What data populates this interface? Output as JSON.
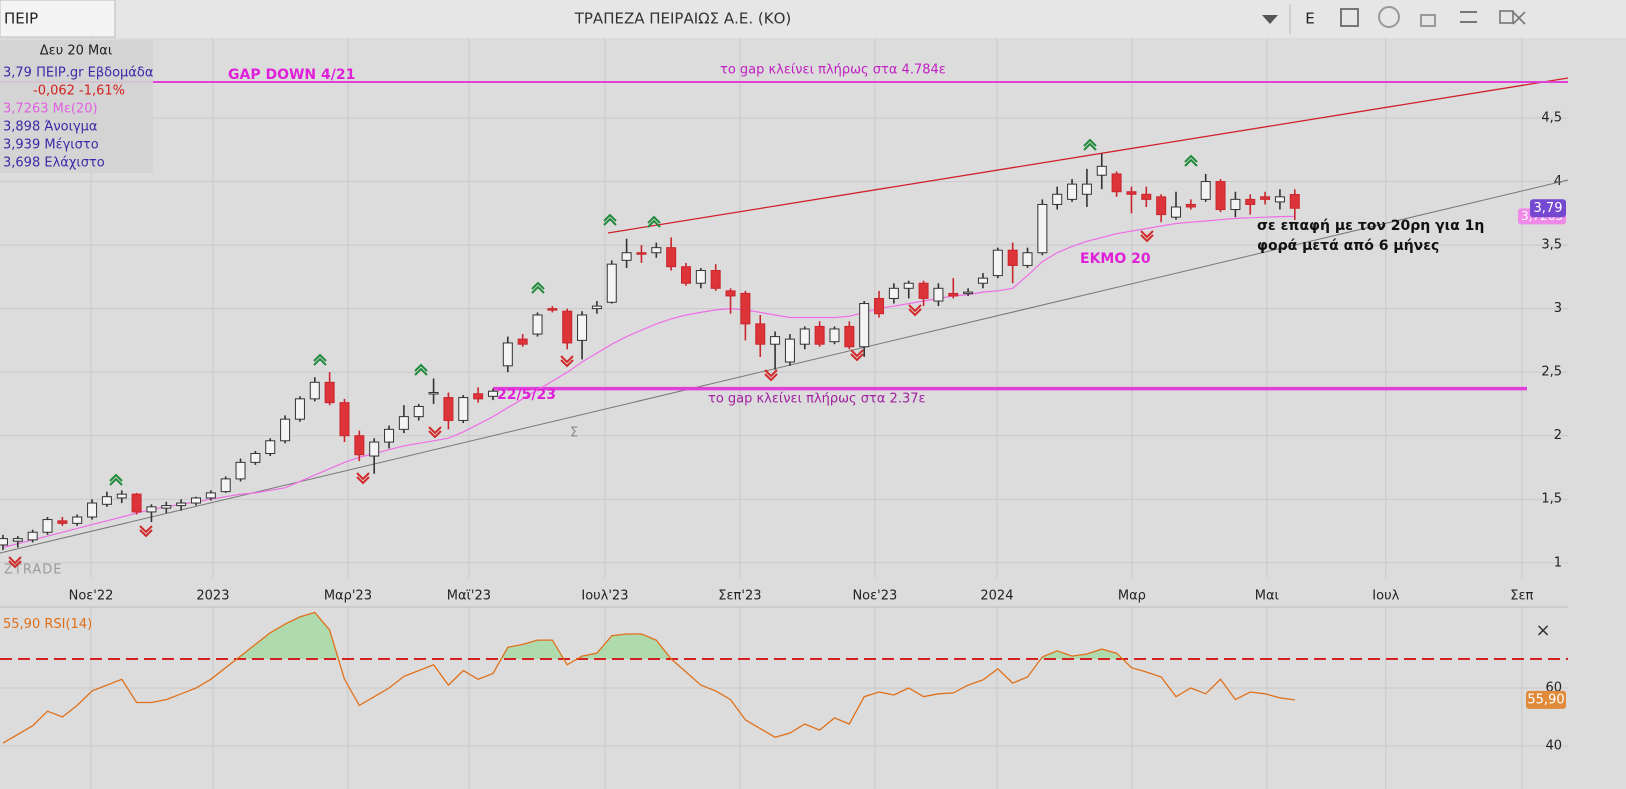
{
  "header": {
    "symbol": "ΠΕΙΡ",
    "title": "ΤΡΑΠΕΖΑ ΠΕΙΡΑΙΩΣ Α.Ε. (ΚΟ)",
    "mode": "Ε",
    "close": "×"
  },
  "info": {
    "date": "Δευ 20 Μαι",
    "lines": [
      "3,79 ΠΕΙΡ.gr Εβδομάδα",
      "-0,062 -1,61%",
      "3,7263 Με(20)",
      "3,898 Άνοιγμα",
      "3,939 Μέγιστο",
      "3,698 Ελάχιστο"
    ]
  },
  "chart_data": [
    {
      "type": "candlestick",
      "watermark": "ZTRADE",
      "open": [
        1.14,
        1.17,
        1.18,
        1.24,
        1.33,
        1.31,
        1.36,
        1.46,
        1.51,
        1.54,
        1.4,
        1.43,
        1.45,
        1.47,
        1.51,
        1.56,
        1.66,
        1.79,
        1.86,
        1.96,
        2.13,
        2.29,
        2.42,
        2.26,
        2.0,
        1.84,
        1.95,
        2.05,
        2.15,
        2.34,
        2.3,
        2.12,
        2.33,
        2.31,
        2.55,
        2.76,
        2.8,
        3.0,
        2.98,
        2.75,
        3.0,
        3.05,
        3.38,
        3.44,
        3.44,
        3.48,
        3.33,
        3.2,
        3.3,
        3.14,
        3.12,
        2.88,
        2.72,
        2.58,
        2.72,
        2.86,
        2.74,
        2.86,
        2.7,
        3.08,
        3.08,
        3.16,
        3.2,
        3.06,
        3.12,
        3.12,
        3.2,
        3.26,
        3.46,
        3.34,
        3.44,
        3.82,
        3.86,
        3.9,
        4.05,
        4.06,
        3.92,
        3.9,
        3.88,
        3.72,
        3.82,
        3.86,
        4.0,
        3.78,
        3.86,
        3.88,
        3.84,
        3.898
      ],
      "high": [
        1.22,
        1.21,
        1.26,
        1.36,
        1.36,
        1.38,
        1.5,
        1.56,
        1.57,
        1.55,
        1.46,
        1.48,
        1.5,
        1.52,
        1.57,
        1.68,
        1.82,
        1.88,
        1.98,
        2.16,
        2.31,
        2.46,
        2.5,
        2.29,
        2.04,
        1.98,
        2.08,
        2.24,
        2.25,
        2.45,
        2.34,
        2.32,
        2.38,
        2.37,
        2.78,
        2.8,
        2.97,
        3.02,
        3.0,
        2.98,
        3.06,
        3.38,
        3.55,
        3.5,
        3.52,
        3.56,
        3.36,
        3.32,
        3.35,
        3.16,
        3.14,
        2.95,
        2.82,
        2.8,
        2.86,
        2.9,
        2.86,
        2.9,
        3.06,
        3.14,
        3.2,
        3.22,
        3.22,
        3.2,
        3.24,
        3.16,
        3.28,
        3.48,
        3.52,
        3.48,
        3.86,
        3.96,
        4.02,
        4.1,
        4.22,
        4.08,
        3.96,
        3.96,
        3.9,
        3.92,
        3.86,
        4.06,
        4.02,
        3.92,
        3.9,
        3.92,
        3.94,
        3.939
      ],
      "low": [
        1.1,
        1.12,
        1.16,
        1.22,
        1.29,
        1.29,
        1.34,
        1.44,
        1.47,
        1.38,
        1.32,
        1.39,
        1.41,
        1.45,
        1.49,
        1.55,
        1.64,
        1.77,
        1.84,
        1.94,
        2.11,
        2.27,
        2.24,
        1.95,
        1.8,
        1.7,
        1.9,
        2.02,
        2.12,
        2.25,
        2.05,
        2.1,
        2.26,
        2.28,
        2.5,
        2.7,
        2.78,
        2.97,
        2.68,
        2.6,
        2.96,
        3.04,
        3.32,
        3.36,
        3.4,
        3.3,
        3.18,
        3.16,
        3.14,
        2.96,
        2.75,
        2.62,
        2.52,
        2.55,
        2.68,
        2.7,
        2.72,
        2.68,
        2.62,
        2.93,
        3.04,
        3.08,
        3.02,
        3.02,
        3.08,
        3.1,
        3.16,
        3.24,
        3.2,
        3.32,
        3.42,
        3.78,
        3.84,
        3.8,
        3.94,
        3.88,
        3.75,
        3.8,
        3.68,
        3.7,
        3.78,
        3.84,
        3.76,
        3.72,
        3.74,
        3.82,
        3.78,
        3.698
      ],
      "close": [
        1.19,
        1.19,
        1.24,
        1.34,
        1.31,
        1.36,
        1.47,
        1.52,
        1.54,
        1.4,
        1.44,
        1.45,
        1.47,
        1.51,
        1.55,
        1.66,
        1.79,
        1.86,
        1.96,
        2.13,
        2.29,
        2.42,
        2.26,
        2.0,
        1.85,
        1.95,
        2.05,
        2.15,
        2.23,
        2.34,
        2.12,
        2.3,
        2.29,
        2.35,
        2.73,
        2.72,
        2.95,
        2.99,
        2.73,
        2.95,
        3.02,
        3.35,
        3.44,
        3.43,
        3.48,
        3.33,
        3.2,
        3.3,
        3.16,
        3.1,
        2.88,
        2.72,
        2.78,
        2.76,
        2.84,
        2.72,
        2.84,
        2.7,
        3.04,
        2.96,
        3.16,
        3.2,
        3.08,
        3.16,
        3.1,
        3.13,
        3.24,
        3.46,
        3.34,
        3.44,
        3.82,
        3.9,
        3.98,
        3.98,
        4.12,
        3.92,
        3.9,
        3.86,
        3.74,
        3.8,
        3.8,
        4.0,
        3.78,
        3.86,
        3.82,
        3.86,
        3.88,
        3.79
      ],
      "last_label": "3,79",
      "series": [
        {
          "color": "#ee6ee8",
          "values": [
            1.12,
            1.15,
            1.18,
            1.21,
            1.24,
            1.27,
            1.3,
            1.33,
            1.36,
            1.39,
            1.42,
            1.44,
            1.46,
            1.48,
            1.5,
            1.52,
            1.54,
            1.55,
            1.57,
            1.59,
            1.64,
            1.69,
            1.74,
            1.79,
            1.83,
            1.86,
            1.89,
            1.92,
            1.94,
            1.96,
            1.98,
            2.03,
            2.09,
            2.15,
            2.22,
            2.29,
            2.36,
            2.43,
            2.5,
            2.58,
            2.65,
            2.72,
            2.78,
            2.83,
            2.88,
            2.92,
            2.95,
            2.97,
            2.99,
            3.0,
            2.99,
            2.97,
            2.95,
            2.93,
            2.93,
            2.93,
            2.93,
            2.94,
            2.97,
            3.0,
            3.02,
            3.04,
            3.06,
            3.08,
            3.1,
            3.11,
            3.13,
            3.14,
            3.16,
            3.26,
            3.37,
            3.44,
            3.49,
            3.53,
            3.56,
            3.59,
            3.61,
            3.63,
            3.65,
            3.67,
            3.68,
            3.69,
            3.7,
            3.71,
            3.715,
            3.72,
            3.724,
            3.7263
          ],
          "last_label": "3,7263"
        }
      ],
      "levels": [
        4.784,
        2.37
      ],
      "annotations": [
        "GAP DOWN 4/21",
        "το gap κλείνει πλήρως στα 4.784ε",
        "22/5/23",
        "το gap κλείνει πλήρως στα 2.37ε",
        "ΕΚΜΟ 20",
        "σε επαφή με τον 20ρη για 1η",
        "φορά μετά από 6 μήνες",
        "Σ"
      ],
      "xlim": [
        -0.2,
        105.4
      ],
      "xticks": [
        {
          "value": 5.93,
          "label": "Νοε'22"
        },
        {
          "value": 14.14,
          "label": "2023"
        },
        {
          "value": 23.23,
          "label": "Μαρ'23"
        },
        {
          "value": 31.38,
          "label": "Μαϊ'23"
        },
        {
          "value": 40.54,
          "label": "Ιουλ'23"
        },
        {
          "value": 49.63,
          "label": "Σεπ'23"
        },
        {
          "value": 58.72,
          "label": "Νοε'23"
        },
        {
          "value": 66.94,
          "label": "2024"
        },
        {
          "value": 76.03,
          "label": "Μαρ"
        },
        {
          "value": 85.12,
          "label": "Μαι"
        },
        {
          "value": 93.13,
          "label": "Ιουλ"
        },
        {
          "value": 102.29,
          "label": "Σεπ"
        }
      ],
      "ylim": [
        0.88,
        5.13
      ],
      "yticks": [
        1,
        {
          "value": 1.5,
          "label": "1,5"
        },
        2,
        {
          "value": 2.5,
          "label": "2,5"
        },
        3,
        {
          "value": 3.5,
          "label": "3,5"
        },
        4,
        {
          "value": 4.5,
          "label": "4,5"
        }
      ],
      "grid": true
    },
    {
      "type": "line",
      "name": "RSI(14)",
      "last_label": "55,90",
      "color": "#e0701a",
      "level": 70,
      "level_color": "#d42020",
      "fill_color": "#a6d9a6",
      "values": [
        41,
        44,
        47,
        52,
        50,
        54,
        59,
        61,
        63,
        55,
        55,
        56,
        58,
        60,
        63,
        67,
        71,
        75,
        79,
        82,
        84.5,
        86,
        80,
        63,
        54,
        57,
        60,
        64,
        66,
        68,
        61,
        66,
        63,
        65,
        74,
        75,
        76.5,
        76.5,
        68,
        71,
        72,
        78,
        78.6,
        78.6,
        76.5,
        70,
        65.5,
        61,
        59,
        56,
        49,
        46,
        43,
        44.5,
        47.6,
        45.5,
        49.7,
        47.6,
        57,
        58.6,
        57.6,
        60,
        57,
        58,
        58.3,
        61,
        62.8,
        66.6,
        61.7,
        63.8,
        70.7,
        72.8,
        71,
        71.7,
        73.4,
        72,
        67,
        65.5,
        63.8,
        57,
        60,
        58,
        63,
        56,
        58.6,
        58,
        56.6,
        55.9
      ],
      "xlim": [
        -0.2,
        105.4
      ],
      "ylim": [
        25.2,
        87.9
      ],
      "yticks": [
        40,
        60
      ],
      "grid": true
    }
  ]
}
